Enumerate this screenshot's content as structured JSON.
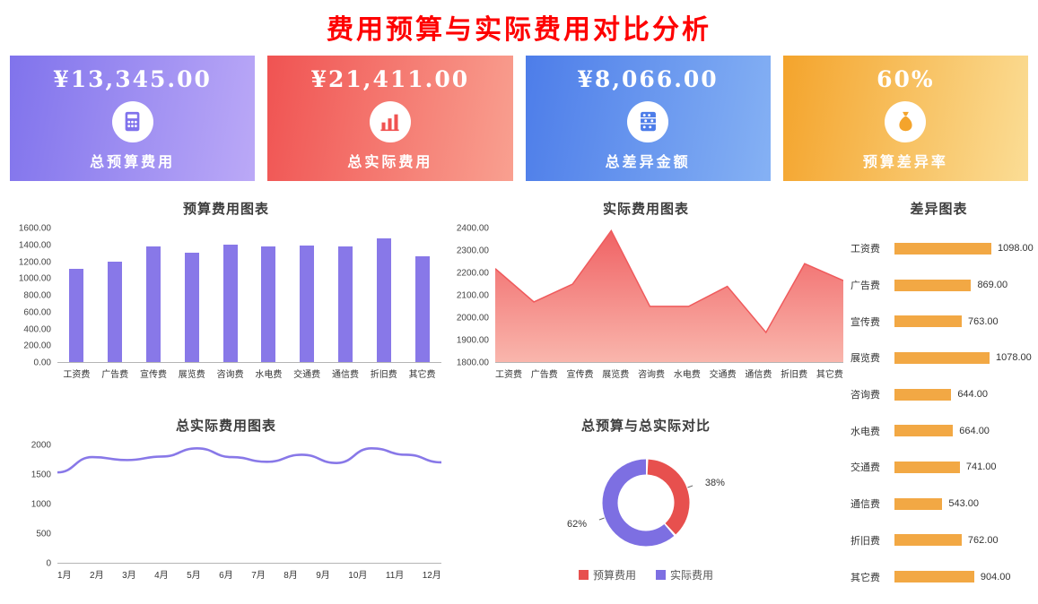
{
  "page": {
    "title": "费用预算与实际费用对比分析"
  },
  "kpi_cards": [
    {
      "value": "¥13,345.00",
      "label": "总预算费用",
      "icon": "calculator-icon",
      "gradient": [
        "#8073ec",
        "#bba9f7"
      ]
    },
    {
      "value": "¥21,411.00",
      "label": "总实际费用",
      "icon": "bar-chart-icon",
      "gradient": [
        "#f05352",
        "#f9a090"
      ]
    },
    {
      "value": "¥8,066.00",
      "label": "总差异金额",
      "icon": "abacus-icon",
      "gradient": [
        "#4d7de9",
        "#85b1f4"
      ]
    },
    {
      "value": "60%",
      "label": "预算差异率",
      "icon": "money-bag-icon",
      "gradient": [
        "#f4a42c",
        "#fbdd95"
      ]
    }
  ],
  "chart_data": [
    {
      "id": "budget_bar",
      "type": "bar",
      "title": "预算费用图表",
      "categories": [
        "工资费",
        "广告费",
        "宣传费",
        "展览费",
        "咨询费",
        "水电费",
        "交通费",
        "通信费",
        "折旧费",
        "其它费"
      ],
      "values": [
        1122,
        1201,
        1387,
        1312,
        1406,
        1386,
        1399,
        1390,
        1480,
        1262
      ],
      "ylim": [
        0,
        1600
      ],
      "ytick_labels": [
        "1600.00",
        "1400.00",
        "1200.00",
        "1000.00",
        "800.00",
        "600.00",
        "400.00",
        "200.00",
        "0.00"
      ],
      "grid": false,
      "color": "#8878e8"
    },
    {
      "id": "actual_area",
      "type": "area",
      "title": "实际费用图表",
      "categories": [
        "工资费",
        "广告费",
        "宣传费",
        "展览费",
        "咨询费",
        "水电费",
        "交通费",
        "通信费",
        "折旧费",
        "其它费"
      ],
      "values": [
        2220,
        2070,
        2150,
        2390,
        2050,
        2050,
        2140,
        1933,
        2242,
        2166
      ],
      "ylim": [
        1800,
        2400
      ],
      "ytick_labels": [
        "2400.00",
        "2300.00",
        "2200.00",
        "2100.00",
        "2000.00",
        "1900.00",
        "1800.00"
      ],
      "grid": false,
      "color": "#ef5a5c",
      "fill_to": "#f9b2a8"
    },
    {
      "id": "diff_hbar",
      "type": "bar",
      "orientation": "horizontal",
      "title": "差异图表",
      "categories": [
        "工资费",
        "广告费",
        "宣传费",
        "展览费",
        "咨询费",
        "水电费",
        "交通费",
        "通信费",
        "折旧费",
        "其它费"
      ],
      "values": [
        1098,
        869,
        763,
        1078,
        644,
        664,
        741,
        543,
        762,
        904
      ],
      "value_labels": [
        "1098.00",
        "869.00",
        "763.00",
        "1078.00",
        "644.00",
        "664.00",
        "741.00",
        "543.00",
        "762.00",
        "904.00"
      ],
      "xlim": [
        0,
        1200
      ],
      "grid": false,
      "color": "#f2a844"
    },
    {
      "id": "monthly_line",
      "type": "line",
      "title": "总实际费用图表",
      "categories": [
        "1月",
        "2月",
        "3月",
        "4月",
        "5月",
        "6月",
        "7月",
        "8月",
        "9月",
        "10月",
        "11月",
        "12月"
      ],
      "values": [
        1540,
        1800,
        1750,
        1810,
        1950,
        1800,
        1720,
        1840,
        1700,
        1950,
        1840,
        1711
      ],
      "ylim": [
        0,
        2000
      ],
      "ytick_labels": [
        "2000",
        "1500",
        "1000",
        "500",
        "0"
      ],
      "grid": false,
      "color": "#8878e8"
    },
    {
      "id": "budget_vs_actual_donut",
      "type": "pie",
      "title": "总预算与总实际对比",
      "legend_position": "bottom",
      "slices": [
        {
          "label": "预算费用",
          "pct": 38,
          "pct_label": "38%",
          "color": "#e7504e"
        },
        {
          "label": "实际费用",
          "pct": 62,
          "pct_label": "62%",
          "color": "#7d6fe2"
        }
      ]
    }
  ]
}
